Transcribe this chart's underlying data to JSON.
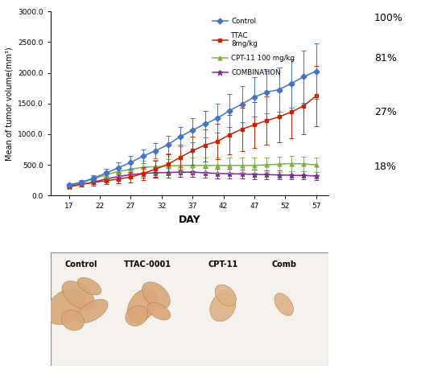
{
  "days_all": [
    17,
    19,
    21,
    23,
    25,
    27,
    29,
    31,
    33,
    35,
    37,
    39,
    41,
    43,
    45,
    47,
    49,
    51,
    53,
    55,
    57
  ],
  "control_y": [
    175,
    220,
    285,
    370,
    455,
    540,
    645,
    730,
    830,
    960,
    1065,
    1165,
    1260,
    1385,
    1490,
    1605,
    1685,
    1725,
    1825,
    1935,
    2025
  ],
  "control_err": [
    30,
    40,
    52,
    72,
    83,
    102,
    112,
    122,
    143,
    163,
    193,
    213,
    233,
    263,
    293,
    323,
    343,
    363,
    393,
    423,
    455
  ],
  "ttac_y": [
    155,
    185,
    215,
    242,
    272,
    302,
    362,
    432,
    512,
    622,
    732,
    822,
    882,
    992,
    1082,
    1152,
    1222,
    1282,
    1362,
    1462,
    1622
  ],
  "ttac_err": [
    25,
    35,
    47,
    57,
    67,
    82,
    102,
    132,
    162,
    202,
    232,
    262,
    292,
    322,
    352,
    372,
    392,
    412,
    432,
    462,
    492
  ],
  "cpt_y": [
    160,
    212,
    272,
    342,
    392,
    432,
    462,
    472,
    482,
    492,
    492,
    492,
    492,
    492,
    492,
    492,
    502,
    512,
    522,
    517,
    502
  ],
  "cpt_err": [
    20,
    32,
    47,
    62,
    77,
    92,
    102,
    112,
    117,
    122,
    122,
    122,
    122,
    122,
    122,
    122,
    122,
    122,
    122,
    122,
    122
  ],
  "combo_y": [
    145,
    182,
    222,
    272,
    312,
    342,
    362,
    372,
    377,
    382,
    382,
    372,
    362,
    357,
    352,
    347,
    342,
    337,
    332,
    327,
    322
  ],
  "combo_err": [
    20,
    27,
    37,
    47,
    57,
    67,
    72,
    77,
    80,
    82,
    82,
    82,
    80,
    78,
    76,
    74,
    72,
    70,
    68,
    66,
    64
  ],
  "control_color": "#4472C4",
  "ttac_color": "#CC2200",
  "cpt_color": "#7CB342",
  "combo_color": "#7B2D8B",
  "ylabel": "Mean of tumor volume(mm³)",
  "xlabel": "DAY",
  "ylim": [
    0,
    3000
  ],
  "ytick_vals": [
    0.0,
    500.0,
    1000.0,
    1500.0,
    2000.0,
    2500.0,
    3000.0
  ],
  "xticks": [
    17,
    22,
    27,
    32,
    37,
    42,
    47,
    52,
    57
  ],
  "pct_labels": [
    "100%",
    "81%",
    "27%",
    "18%"
  ],
  "photo_labels": [
    "Control",
    "TTAC-0001",
    "CPT-11",
    "Comb"
  ],
  "photo_bg": "#F0EBE3"
}
